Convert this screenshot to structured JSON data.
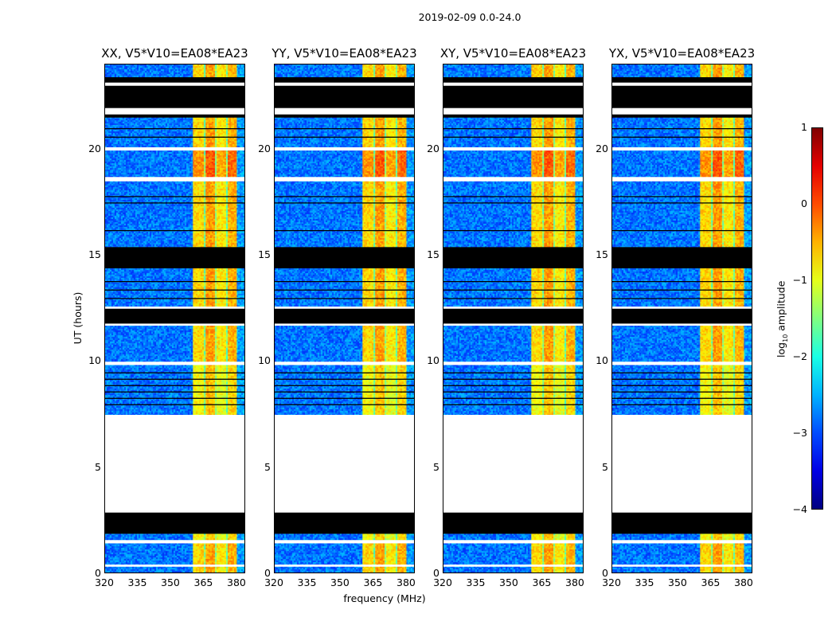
{
  "suptitle": "2019-02-09 0.0-24.0",
  "chart_data": {
    "type": "heatmap",
    "title": "2019-02-09 0.0-24.0",
    "xlabel": "frequency (MHz)",
    "ylabel": "UT (hours)",
    "xlim": [
      320,
      384
    ],
    "ylim": [
      0,
      24
    ],
    "xticks": [
      320,
      335,
      350,
      365,
      380
    ],
    "xtick_labels": [
      "320",
      "335",
      "350",
      "365",
      "380"
    ],
    "yticks": [
      0,
      5,
      10,
      15,
      20
    ],
    "ytick_labels": [
      "0",
      "5",
      "10",
      "15",
      "20"
    ],
    "panels": [
      {
        "title": "XX, V5*V10=EA08*EA23"
      },
      {
        "title": "YY, V5*V10=EA08*EA23"
      },
      {
        "title": "XY, V5*V10=EA08*EA23"
      },
      {
        "title": "YX, V5*V10=EA08*EA23"
      }
    ],
    "colorbar": {
      "label": "log10 amplitude",
      "label_main": "log",
      "label_sub": "10",
      "label_rest": " amplitude",
      "range": [
        -4,
        1
      ],
      "ticks": [
        1,
        0,
        -1,
        -2,
        -3,
        -4
      ],
      "tick_labels": [
        "1",
        "0",
        "−1",
        "−2",
        "−3",
        "−4"
      ],
      "colormap": "jet"
    },
    "time_segments": [
      {
        "t0": 0,
        "t1": 0.35,
        "state": "data",
        "boost": 0
      },
      {
        "t0": 0.35,
        "t1": 0.45,
        "state": "nodata"
      },
      {
        "t0": 0.45,
        "t1": 1.45,
        "state": "data",
        "boost": 0
      },
      {
        "t0": 1.45,
        "t1": 1.6,
        "state": "nodata"
      },
      {
        "t0": 1.6,
        "t1": 1.9,
        "state": "data",
        "boost": -0.2
      },
      {
        "t0": 1.9,
        "t1": 2.9,
        "state": "flagged"
      },
      {
        "t0": 2.9,
        "t1": 7.5,
        "state": "nodata"
      },
      {
        "t0": 7.5,
        "t1": 9.85,
        "state": "data",
        "boost": -0.2
      },
      {
        "t0": 9.85,
        "t1": 10.0,
        "state": "nodata"
      },
      {
        "t0": 10.0,
        "t1": 11.7,
        "state": "data",
        "boost": 0
      },
      {
        "t0": 11.7,
        "t1": 11.8,
        "state": "nodata"
      },
      {
        "t0": 11.8,
        "t1": 12.5,
        "state": "flagged"
      },
      {
        "t0": 12.5,
        "t1": 12.6,
        "state": "nodata"
      },
      {
        "t0": 12.6,
        "t1": 14.4,
        "state": "data",
        "boost": 0
      },
      {
        "t0": 14.4,
        "t1": 15.4,
        "state": "flagged"
      },
      {
        "t0": 15.4,
        "t1": 18.5,
        "state": "data",
        "boost": 0
      },
      {
        "t0": 18.5,
        "t1": 18.7,
        "state": "nodata"
      },
      {
        "t0": 18.7,
        "t1": 19.95,
        "state": "data",
        "boost": 0.35
      },
      {
        "t0": 19.95,
        "t1": 20.1,
        "state": "nodata"
      },
      {
        "t0": 20.1,
        "t1": 21.5,
        "state": "data",
        "boost": 0
      },
      {
        "t0": 21.5,
        "t1": 21.65,
        "state": "flagged"
      },
      {
        "t0": 21.65,
        "t1": 21.95,
        "state": "nodata"
      },
      {
        "t0": 21.95,
        "t1": 23.0,
        "state": "flagged"
      },
      {
        "t0": 23.0,
        "t1": 23.15,
        "state": "nodata"
      },
      {
        "t0": 23.15,
        "t1": 23.4,
        "state": "flagged"
      },
      {
        "t0": 23.4,
        "t1": 24,
        "state": "data",
        "boost": 0
      }
    ],
    "flag_lines": [
      8.0,
      8.3,
      8.6,
      8.9,
      9.2,
      9.5,
      13.0,
      13.4,
      13.8,
      16.2,
      17.5,
      17.8,
      20.6,
      21.0
    ],
    "frequency_bands": [
      {
        "f0": 320,
        "f1": 360,
        "log_amp": -2.8,
        "tone": false
      },
      {
        "f0": 360,
        "f1": 365,
        "log_amp": -0.7,
        "tone": true
      },
      {
        "f0": 365,
        "f1": 365.7,
        "log_amp": -1.6,
        "tone": false
      },
      {
        "f0": 365.7,
        "f1": 370,
        "log_amp": -0.4,
        "tone": true
      },
      {
        "f0": 370,
        "f1": 370.7,
        "log_amp": -1.4,
        "tone": false
      },
      {
        "f0": 370.7,
        "f1": 375,
        "log_amp": -0.8,
        "tone": true
      },
      {
        "f0": 375,
        "f1": 375.7,
        "log_amp": -1.6,
        "tone": false
      },
      {
        "f0": 375.7,
        "f1": 380,
        "log_amp": -0.5,
        "tone": true
      },
      {
        "f0": 380,
        "f1": 384,
        "log_amp": -2.6,
        "tone": false
      }
    ]
  }
}
